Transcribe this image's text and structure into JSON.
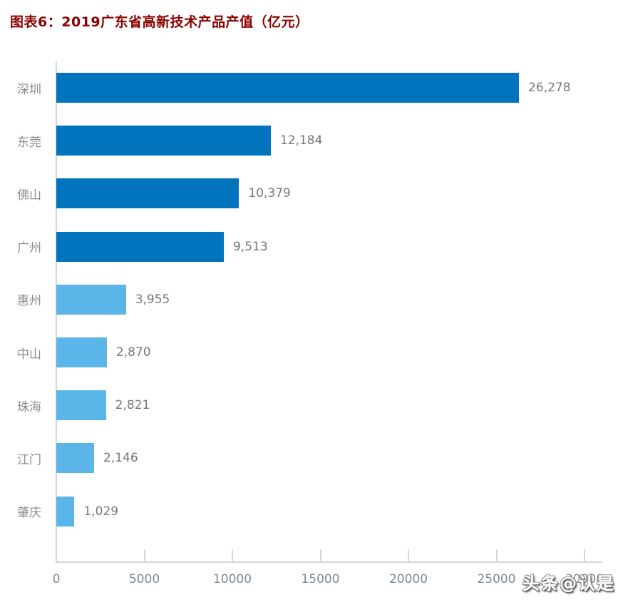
{
  "page": {
    "watermark": "头条@认是"
  },
  "chart_data": {
    "type": "bar",
    "orientation": "horizontal",
    "title": "图表6：2019广东省高新技术产品产值（亿元）",
    "categories": [
      "深圳",
      "东莞",
      "佛山",
      "广州",
      "惠州",
      "中山",
      "珠海",
      "江门",
      "肇庆"
    ],
    "values": [
      26278,
      12184,
      10379,
      9513,
      3955,
      2870,
      2821,
      2146,
      1029
    ],
    "value_labels": [
      "26,278",
      "12,184",
      "10,379",
      "9,513",
      "3,955",
      "2,870",
      "2,821",
      "2,146",
      "1,029"
    ],
    "xlabel": "",
    "ylabel": "",
    "xlim": [
      0,
      30000
    ],
    "x_ticks": [
      0,
      5000,
      10000,
      15000,
      20000,
      25000,
      30000
    ],
    "x_tick_labels": [
      "0",
      "5000",
      "10000",
      "15000",
      "20000",
      "25000",
      "30000"
    ],
    "grid": false,
    "legend": null,
    "colors": {
      "bar_highlight": "#0273BD",
      "bar_normal": "#5BB5E8",
      "highlight_count": 4,
      "axis": "#D6D6D6",
      "category_text": "#8C8C8C",
      "value_text": "#75787B",
      "tick_text": "#7D8893",
      "title_text": "#8B0000"
    }
  }
}
